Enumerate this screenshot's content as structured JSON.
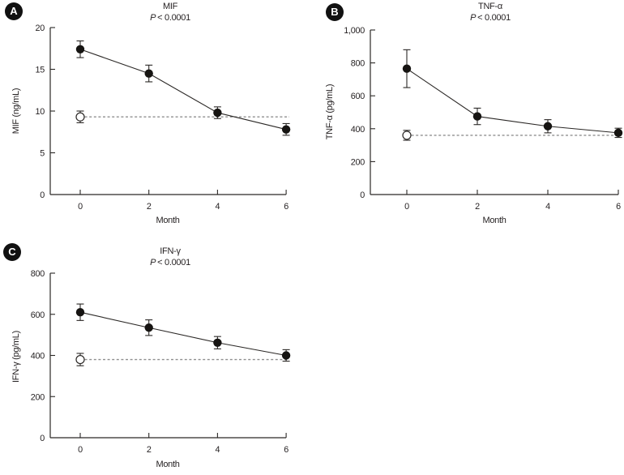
{
  "colors": {
    "ink": "#2b2826",
    "marker": "#161412",
    "dashed": "#8f8f8f",
    "badge_bg": "#111111",
    "badge_text": "#ffffff",
    "background": "#ffffff"
  },
  "chart_data": [
    {
      "type": "line",
      "panel": "A",
      "title": "MIF",
      "p_label": "P",
      "p_value": "< 0.0001",
      "xlabel": "Month",
      "ylabel": "MIF (ng/mL)",
      "ylim": [
        0,
        20
      ],
      "yticks": [
        0,
        5,
        10,
        15,
        20
      ],
      "ytick_labels": [
        "0",
        "5",
        "10",
        "15",
        "20"
      ],
      "xticks": [
        0,
        2,
        4,
        6
      ],
      "xtick_labels": [
        "0",
        "2",
        "4",
        "6"
      ],
      "series": [
        {
          "name": "filled-circle-series",
          "marker": "filled-circle",
          "x": [
            0,
            2,
            4,
            6
          ],
          "values": [
            17.4,
            14.5,
            9.8,
            7.8
          ],
          "errors": [
            1.0,
            1.0,
            0.7,
            0.7
          ]
        },
        {
          "name": "open-circle-reference",
          "marker": "open-circle",
          "x": [
            0
          ],
          "values": [
            9.3
          ],
          "errors": [
            0.7
          ]
        }
      ],
      "baseline": {
        "value": 9.3,
        "style": "dashed"
      }
    },
    {
      "type": "line",
      "panel": "B",
      "title": "TNF-α",
      "p_label": "P",
      "p_value": "< 0.0001",
      "xlabel": "Month",
      "ylabel": "TNF-α (pg/mL)",
      "ylim": [
        0,
        1000
      ],
      "yticks": [
        0,
        200,
        400,
        600,
        800,
        1000
      ],
      "ytick_labels": [
        "0",
        "200",
        "400",
        "600",
        "800",
        "1,000"
      ],
      "xticks": [
        0,
        2,
        4,
        6
      ],
      "xtick_labels": [
        "0",
        "2",
        "4",
        "6"
      ],
      "series": [
        {
          "name": "filled-circle-series",
          "marker": "filled-circle",
          "x": [
            0,
            2,
            4,
            6
          ],
          "values": [
            765,
            475,
            415,
            375
          ],
          "errors": [
            115,
            50,
            40,
            28
          ]
        },
        {
          "name": "open-circle-reference",
          "marker": "open-circle",
          "x": [
            0
          ],
          "values": [
            360
          ],
          "errors": [
            30
          ]
        }
      ],
      "baseline": {
        "value": 360,
        "style": "dashed"
      }
    },
    {
      "type": "line",
      "panel": "C",
      "title": "IFN-γ",
      "p_label": "P",
      "p_value": "< 0.0001",
      "xlabel": "Month",
      "ylabel": "IFN-γ (pg/mL)",
      "ylim": [
        0,
        800
      ],
      "yticks": [
        0,
        200,
        400,
        600,
        800
      ],
      "ytick_labels": [
        "0",
        "200",
        "400",
        "600",
        "800"
      ],
      "xticks": [
        0,
        2,
        4,
        6
      ],
      "xtick_labels": [
        "0",
        "2",
        "4",
        "6"
      ],
      "series": [
        {
          "name": "filled-circle-series",
          "marker": "filled-circle",
          "x": [
            0,
            2,
            4,
            6
          ],
          "values": [
            610,
            535,
            462,
            400
          ],
          "errors": [
            40,
            38,
            30,
            28
          ]
        },
        {
          "name": "open-circle-reference",
          "marker": "open-circle",
          "x": [
            0
          ],
          "values": [
            380
          ],
          "errors": [
            30
          ]
        }
      ],
      "baseline": {
        "value": 380,
        "style": "dashed"
      }
    }
  ]
}
